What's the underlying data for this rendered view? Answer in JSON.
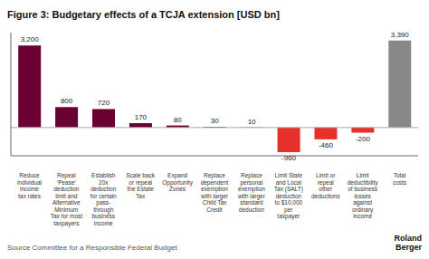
{
  "chart_data": {
    "type": "bar",
    "title": "Figure 3: Budgetary effects of a TCJA extension [USD bn]",
    "categories": [
      "Reduce\nindividual\nincome\ntax rates",
      "Repeal\n‘Pease’\ndeduction\nlimit and\nAlternative\nMinimum\nTax for most\ntaxpayers",
      "Establish\n20x\ndeduction\nfor certain\npass-\nthrough\nbusiness\nincome",
      "Scale back\nor repeal\nthe Estate\nTax",
      "Expand\nOpportunity\nZones",
      "Replace\ndependent\nexemption\nwith larger\nChild Tax\nCredit",
      "Replace\npersonal\nexemption\nwith larger\nstandard\ndeduction",
      "Limit State\nand Local\nTax (SALT)\ndeduction\nto $10,000\nper\ntaxpayer",
      "Limit or\nrepeal\nother\ndeductions",
      "Limit\ndeductibility\nof business\nlosses\nagainst\nordinary\nincome",
      "Total\ncosts"
    ],
    "values": [
      3200,
      800,
      720,
      170,
      80,
      30,
      10,
      -960,
      -460,
      -200,
      3390
    ],
    "value_labels": [
      "3,200",
      "800",
      "720",
      "170",
      "80",
      "30",
      "10",
      "-960",
      "-460",
      "-200",
      "3,390"
    ],
    "colors": [
      "#6b0033",
      "#6b0033",
      "#6b0033",
      "#6b0033",
      "#6b0033",
      "#6b0033",
      "#6b0033",
      "#e8302a",
      "#e8302a",
      "#e8302a",
      "#888888"
    ],
    "ylim": [
      -1100,
      3700
    ],
    "data_labels": true,
    "tick_labels": "x",
    "grid": false,
    "annotations": [
      "Source Committee for a Responsible Federal Budget",
      "Roland\nBerger"
    ]
  }
}
